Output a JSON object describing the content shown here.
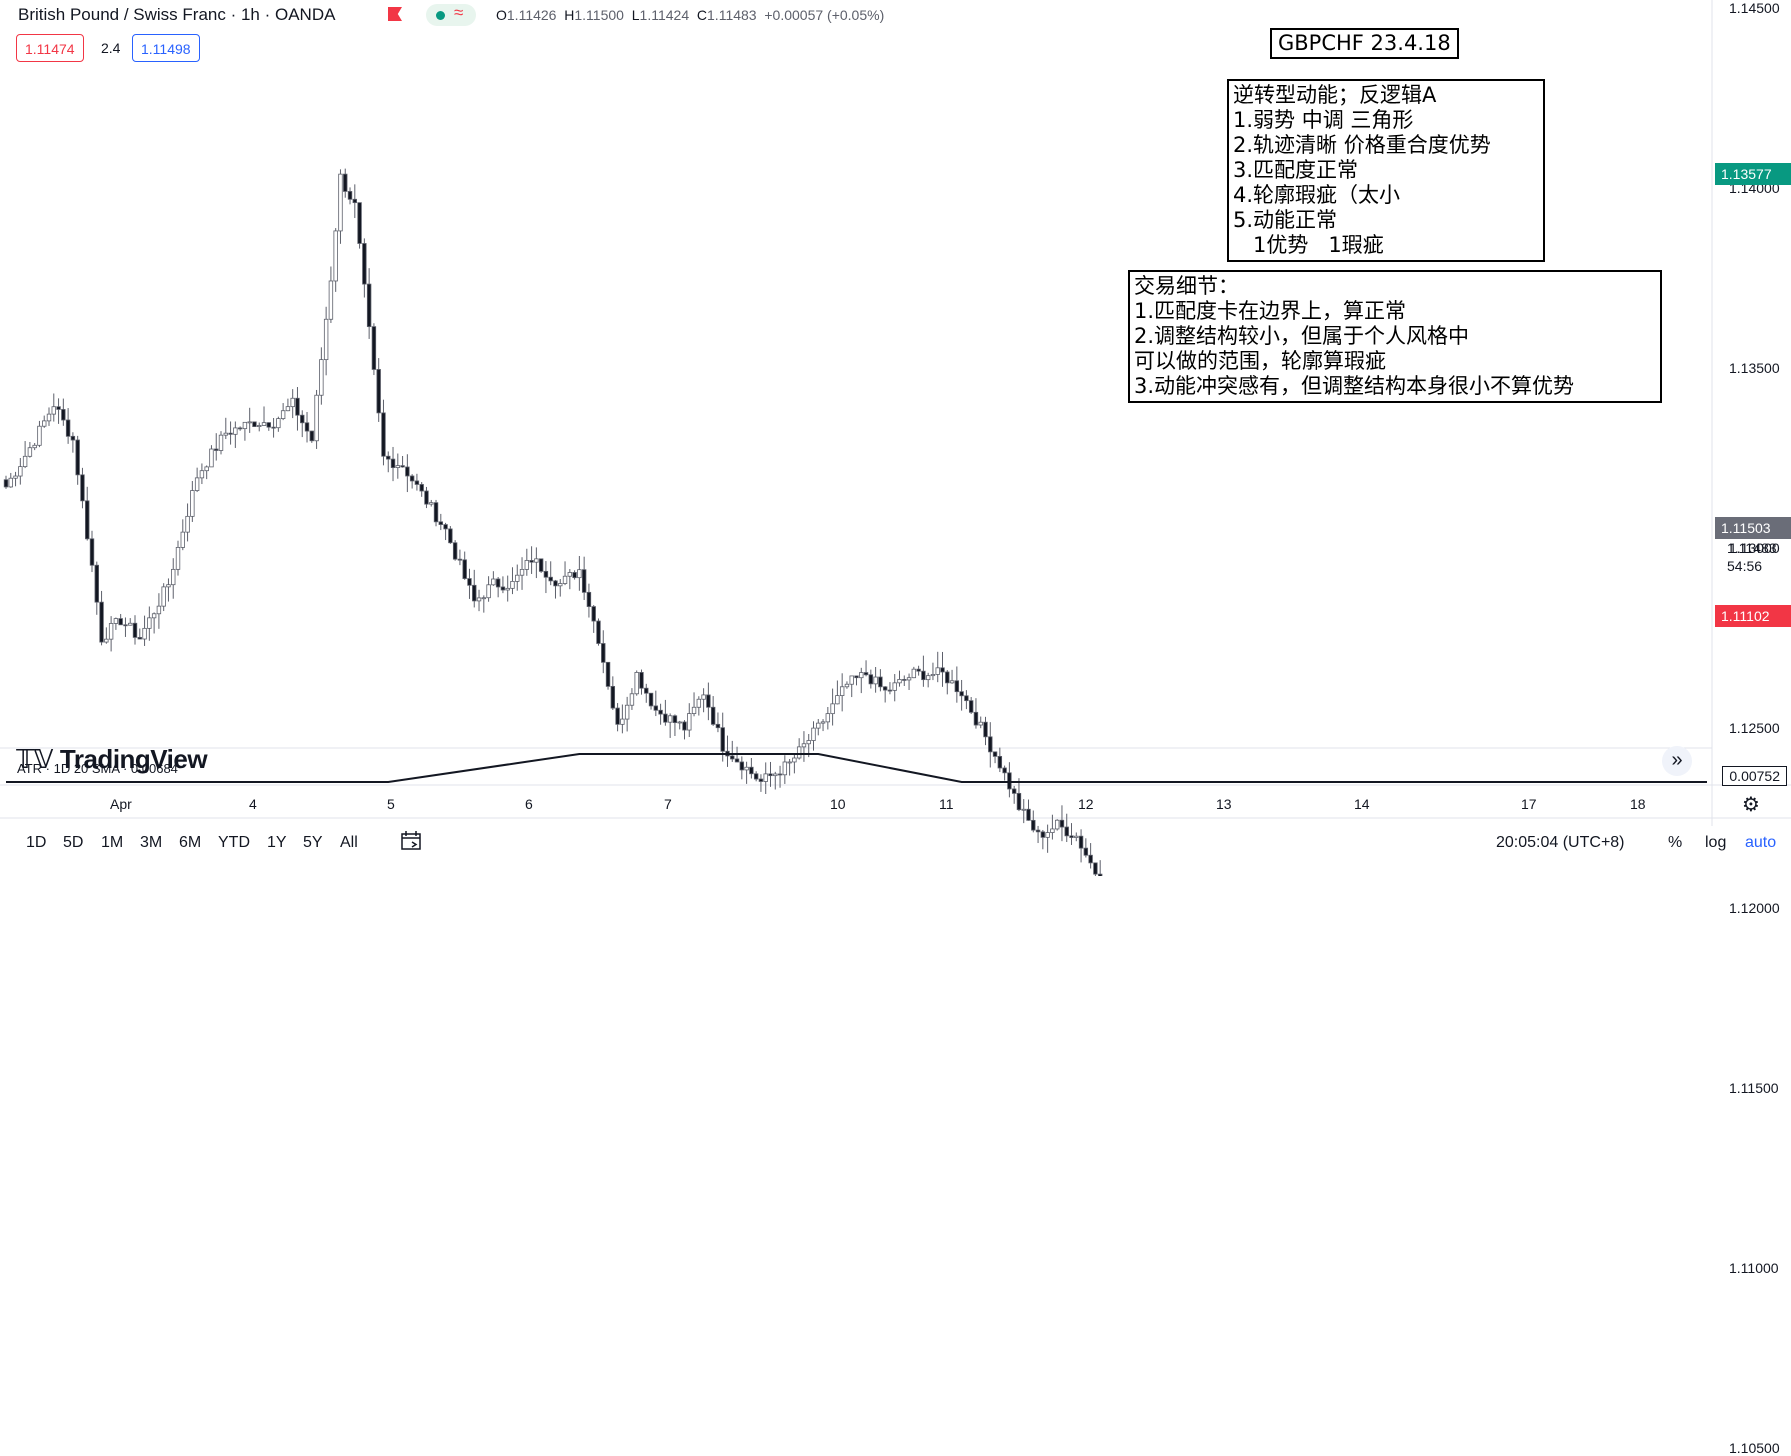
{
  "header": {
    "symbol": "British Pound / Swiss Franc · 1h · OANDA",
    "ohlc": {
      "o_label": "O",
      "o": "1.11426",
      "h_label": "H",
      "h": "1.11500",
      "l_label": "L",
      "l": "1.11424",
      "c_label": "C",
      "c": "1.11483",
      "change": "+0.00057 (+0.05%)"
    },
    "sell_price": "1.11474",
    "spread": "2.4",
    "buy_price": "1.11498",
    "status_icon": "market-open-dot",
    "wave_icon": "approx-icon"
  },
  "annotations": {
    "title": "GBPCHF 23.4.18",
    "box1": "逆转型动能；反逻辑A\n1.弱势 中调 三角形\n2.轨迹清晰 价格重合度优势\n3.匹配度正常\n4.轮廓瑕疵（太小\n5.动能正常\n   1优势   1瑕疵",
    "box2": "交易细节：\n1.匹配度卡在边界上，算正常\n2.调整结构较小，但属于个人风格中\n可以做的范围，轮廓算瑕疵\n3.动能冲突感有，但调整结构本身很小不算优势"
  },
  "price_axis": {
    "ticks": [
      "1.14500",
      "1.14000",
      "1.13500",
      "1.13000",
      "1.12500",
      "1.12000",
      "1.11500",
      "1.11000",
      "1.10500"
    ],
    "labels": {
      "green": "1.13577",
      "gray": "1.11503",
      "last_close": "1.11483",
      "countdown": "54:56",
      "red": "1.11102"
    },
    "colors": {
      "green": "#089981",
      "gray": "#6a6d78",
      "red": "#f23645"
    }
  },
  "time_axis": {
    "labels": [
      "Apr",
      "4",
      "5",
      "6",
      "7",
      "10",
      "11",
      "12",
      "13",
      "14",
      "17",
      "18"
    ]
  },
  "watermark": "TradingView",
  "atr": {
    "label": "ATR · 1D 20 SMA ·",
    "value": "0.00684",
    "axis_value": "0.00752"
  },
  "bottom_toolbar": {
    "ranges": [
      "1D",
      "5D",
      "1M",
      "3M",
      "6M",
      "YTD",
      "1Y",
      "5Y",
      "All"
    ],
    "time": "20:05:04 (UTC+8)",
    "percent": "%",
    "log": "log",
    "auto": "auto"
  },
  "chart_data": {
    "type": "candlestick",
    "timeframe": "1h",
    "ylim": [
      1.103,
      1.146
    ],
    "x_categories": [
      "Apr",
      "4",
      "5",
      "6",
      "7",
      "10",
      "11",
      "12",
      "13",
      "14",
      "17",
      "18"
    ],
    "anchors": [
      [
        0,
        1.1317
      ],
      [
        6,
        1.133
      ],
      [
        10,
        1.134
      ],
      [
        14,
        1.133
      ],
      [
        18,
        1.1295
      ],
      [
        20,
        1.1275
      ],
      [
        24,
        1.128
      ],
      [
        28,
        1.1275
      ],
      [
        34,
        1.129
      ],
      [
        40,
        1.132
      ],
      [
        46,
        1.1332
      ],
      [
        52,
        1.1335
      ],
      [
        56,
        1.1335
      ],
      [
        60,
        1.134
      ],
      [
        64,
        1.133
      ],
      [
        68,
        1.1375
      ],
      [
        70,
        1.1403
      ],
      [
        73,
        1.1395
      ],
      [
        76,
        1.136
      ],
      [
        79,
        1.1325
      ],
      [
        83,
        1.1323
      ],
      [
        87,
        1.1315
      ],
      [
        92,
        1.1305
      ],
      [
        98,
        1.1285
      ],
      [
        102,
        1.129
      ],
      [
        106,
        1.129
      ],
      [
        110,
        1.1297
      ],
      [
        116,
        1.129
      ],
      [
        120,
        1.1294
      ],
      [
        124,
        1.1275
      ],
      [
        128,
        1.125
      ],
      [
        132,
        1.1265
      ],
      [
        136,
        1.1255
      ],
      [
        142,
        1.125
      ],
      [
        146,
        1.126
      ],
      [
        150,
        1.1245
      ],
      [
        154,
        1.124
      ],
      [
        158,
        1.1235
      ],
      [
        164,
        1.124
      ],
      [
        170,
        1.125
      ],
      [
        176,
        1.1262
      ],
      [
        180,
        1.1265
      ],
      [
        184,
        1.126
      ],
      [
        190,
        1.1265
      ],
      [
        196,
        1.1265
      ],
      [
        200,
        1.126
      ],
      [
        204,
        1.125
      ],
      [
        208,
        1.124
      ],
      [
        212,
        1.1228
      ],
      [
        216,
        1.122
      ],
      [
        220,
        1.1223
      ],
      [
        224,
        1.122
      ],
      [
        228,
        1.121
      ],
      [
        232,
        1.1188
      ],
      [
        236,
        1.118
      ],
      [
        240,
        1.1175
      ],
      [
        244,
        1.118
      ],
      [
        248,
        1.1185
      ],
      [
        252,
        1.1193
      ],
      [
        256,
        1.1198
      ],
      [
        260,
        1.118
      ],
      [
        264,
        1.1145
      ],
      [
        268,
        1.112
      ],
      [
        272,
        1.111
      ],
      [
        276,
        1.113
      ],
      [
        280,
        1.114
      ],
      [
        284,
        1.113
      ],
      [
        288,
        1.1125
      ],
      [
        292,
        1.111
      ],
      [
        296,
        1.1105
      ],
      [
        300,
        1.1125
      ],
      [
        304,
        1.112
      ],
      [
        308,
        1.11
      ],
      [
        312,
        1.1098
      ],
      [
        316,
        1.1099
      ],
      [
        320,
        1.11
      ],
      [
        324,
        1.1095
      ],
      [
        327,
        1.1075
      ],
      [
        330,
        1.1095
      ],
      [
        333,
        1.111
      ],
      [
        336,
        1.1115
      ],
      [
        340,
        1.112
      ],
      [
        344,
        1.1124
      ],
      [
        346,
        1.1122
      ],
      [
        350,
        1.1115
      ],
      [
        352,
        1.1118
      ],
      [
        354,
        1.112
      ],
      [
        356,
        1.1148
      ]
    ],
    "atr_series": [
      [
        0,
        0.00742
      ],
      [
        40,
        0.00742
      ],
      [
        80,
        0.00744
      ],
      [
        120,
        0.00746
      ],
      [
        170,
        0.00746
      ],
      [
        200,
        0.00742
      ],
      [
        240,
        0.00738
      ],
      [
        256,
        0.00736
      ],
      [
        290,
        0.00734
      ],
      [
        330,
        0.00733
      ],
      [
        356,
        0.0073
      ]
    ],
    "drawings": {
      "triangle": [
        [
          330,
          1.1085
        ],
        [
          337,
          1.11315
        ],
        [
          353,
          1.11205
        ],
        [
          356,
          1.1118
        ],
        [
          337,
          1.1102
        ]
      ],
      "rect": [
        [
          356,
          1.11015
        ],
        [
          337,
          1.1133
        ]
      ],
      "lines": [
        [
          [
            327,
            1.1065
          ],
          [
            337,
            1.11315
          ]
        ],
        [
          [
            337,
            1.11315
          ],
          [
            353,
            1.1123
          ]
        ],
        [
          [
            337,
            1.1101
          ],
          [
            356,
            1.1118
          ]
        ]
      ],
      "small_rect": [
        [
          347,
          1.11104
        ],
        [
          354,
          1.11152
        ]
      ]
    }
  }
}
